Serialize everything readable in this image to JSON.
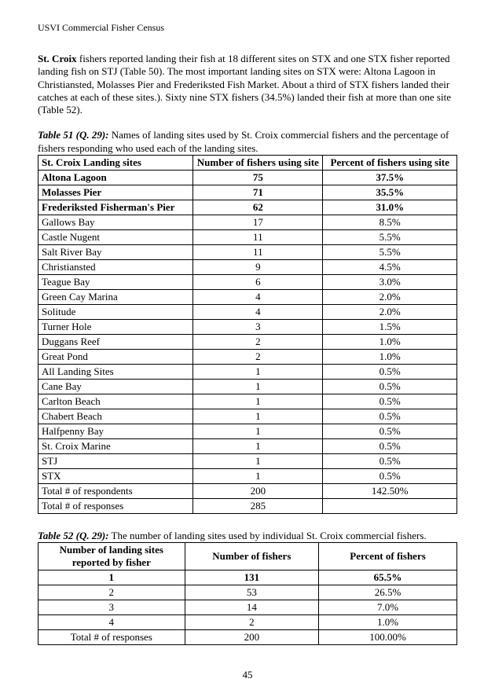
{
  "header": "USVI Commercial Fisher Census",
  "paragraph_bold": "St. Croix",
  "paragraph_rest": " fishers reported landing their fish at 18 different sites on STX and one STX fisher reported landing fish on STJ (Table 50). The most important landing sites on STX were: Altona Lagoon in Christiansted, Molasses Pier and Frederiksted Fish Market.  About a third of STX fishers landed their catches at each of these sites.). Sixty nine STX fishers (34.5%) landed their fish at more than one site (Table 52).",
  "table51": {
    "caption_title": "Table 51 (Q. 29):",
    "caption_rest": "  Names of landing sites used by St. Croix commercial fishers and the percentage of fishers responding who used each of the landing sites.",
    "columns": [
      "St. Croix Landing sites",
      "Number of fishers using site",
      "Percent of fishers using site"
    ],
    "rows": [
      {
        "site": "Altona Lagoon",
        "n": "75",
        "p": "37.5%",
        "bold": true
      },
      {
        "site": "Molasses Pier",
        "n": "71",
        "p": "35.5%",
        "bold": true
      },
      {
        "site": "Frederiksted Fisherman's Pier",
        "n": "62",
        "p": "31.0%",
        "bold": true
      },
      {
        "site": "Gallows Bay",
        "n": "17",
        "p": "8.5%",
        "bold": false
      },
      {
        "site": "Castle Nugent",
        "n": "11",
        "p": "5.5%",
        "bold": false
      },
      {
        "site": "Salt River Bay",
        "n": "11",
        "p": "5.5%",
        "bold": false
      },
      {
        "site": "Christiansted",
        "n": "9",
        "p": "4.5%",
        "bold": false
      },
      {
        "site": "Teague Bay",
        "n": "6",
        "p": "3.0%",
        "bold": false
      },
      {
        "site": "Green Cay Marina",
        "n": "4",
        "p": "2.0%",
        "bold": false
      },
      {
        "site": "Solitude",
        "n": "4",
        "p": "2.0%",
        "bold": false
      },
      {
        "site": "Turner Hole",
        "n": "3",
        "p": "1.5%",
        "bold": false
      },
      {
        "site": "Duggans Reef",
        "n": "2",
        "p": "1.0%",
        "bold": false
      },
      {
        "site": "Great Pond",
        "n": "2",
        "p": "1.0%",
        "bold": false
      },
      {
        "site": "All Landing Sites",
        "n": "1",
        "p": "0.5%",
        "bold": false
      },
      {
        "site": "Cane Bay",
        "n": "1",
        "p": "0.5%",
        "bold": false
      },
      {
        "site": "Carlton Beach",
        "n": "1",
        "p": "0.5%",
        "bold": false
      },
      {
        "site": "Chabert Beach",
        "n": "1",
        "p": "0.5%",
        "bold": false
      },
      {
        "site": "Halfpenny Bay",
        "n": "1",
        "p": "0.5%",
        "bold": false
      },
      {
        "site": "St. Croix Marine",
        "n": "1",
        "p": "0.5%",
        "bold": false
      },
      {
        "site": "STJ",
        "n": "1",
        "p": "0.5%",
        "bold": false
      },
      {
        "site": "STX",
        "n": "1",
        "p": "0.5%",
        "bold": false
      },
      {
        "site": "Total # of respondents",
        "n": "200",
        "p": "142.50%",
        "bold": false
      },
      {
        "site": "Total # of responses",
        "n": "285",
        "p": "",
        "bold": false
      }
    ]
  },
  "table52": {
    "caption_title": "Table 52 (Q. 29):",
    "caption_rest": "  The number of landing sites used by individual St. Croix commercial fishers.",
    "columns": [
      "Number of landing sites reported by fisher",
      "Number of fishers",
      "Percent of fishers"
    ],
    "rows": [
      {
        "k": "1",
        "n": "131",
        "p": "65.5%",
        "bold": true
      },
      {
        "k": "2",
        "n": "53",
        "p": "26.5%",
        "bold": false
      },
      {
        "k": "3",
        "n": "14",
        "p": "7.0%",
        "bold": false
      },
      {
        "k": "4",
        "n": "2",
        "p": "1.0%",
        "bold": false
      },
      {
        "k": "Total # of responses",
        "n": "200",
        "p": "100.00%",
        "bold": false
      }
    ]
  },
  "page_number": "45"
}
